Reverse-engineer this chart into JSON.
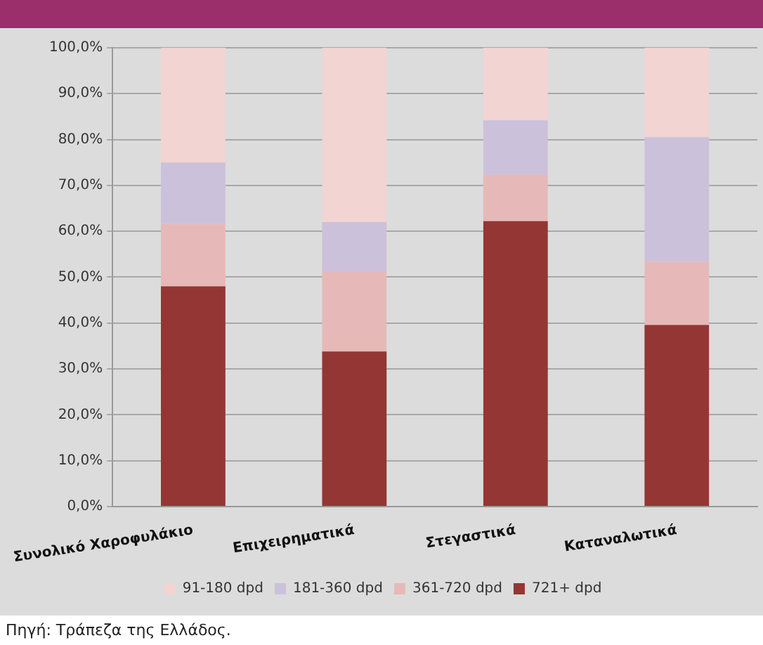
{
  "chart_data": {
    "type": "bar",
    "stacked": true,
    "categories": [
      "Συνολικό Χαροφυλάκιο",
      "Επιχειρηματικά",
      "Στεγαστικά",
      "Καταναλωτικά"
    ],
    "series": [
      {
        "name": "721+ dpd",
        "color": "#943634",
        "values": [
          48,
          33.8,
          62.2,
          39.6
        ]
      },
      {
        "name": "361-720 dpd",
        "color": "#e6b9b8",
        "values": [
          13.6,
          17.5,
          10.1,
          13.8
        ]
      },
      {
        "name": "181-360 dpd",
        "color": "#ccc1da",
        "values": [
          13.4,
          10.7,
          11.9,
          27.1
        ]
      },
      {
        "name": "91-180 dpd",
        "color": "#f2d4d3",
        "values": [
          25,
          38,
          15.8,
          19.5
        ]
      }
    ],
    "ylim": [
      0,
      100
    ],
    "yticks": [
      {
        "value": 0,
        "label": "0,0%"
      },
      {
        "value": 10,
        "label": "10,0%"
      },
      {
        "value": 20,
        "label": "20,0%"
      },
      {
        "value": 30,
        "label": "30,0%"
      },
      {
        "value": 40,
        "label": "40,0%"
      },
      {
        "value": 50,
        "label": "50,0%"
      },
      {
        "value": 60,
        "label": "60,0%"
      },
      {
        "value": 70,
        "label": "70,0%"
      },
      {
        "value": 80,
        "label": "80,0%"
      },
      {
        "value": 90,
        "label": "90,0%"
      },
      {
        "value": 100,
        "label": "100,0%"
      }
    ],
    "grid": "y",
    "legend": "bottom",
    "annotations": [
      "Πηγή: Τράπεζα της Ελλάδος."
    ]
  }
}
